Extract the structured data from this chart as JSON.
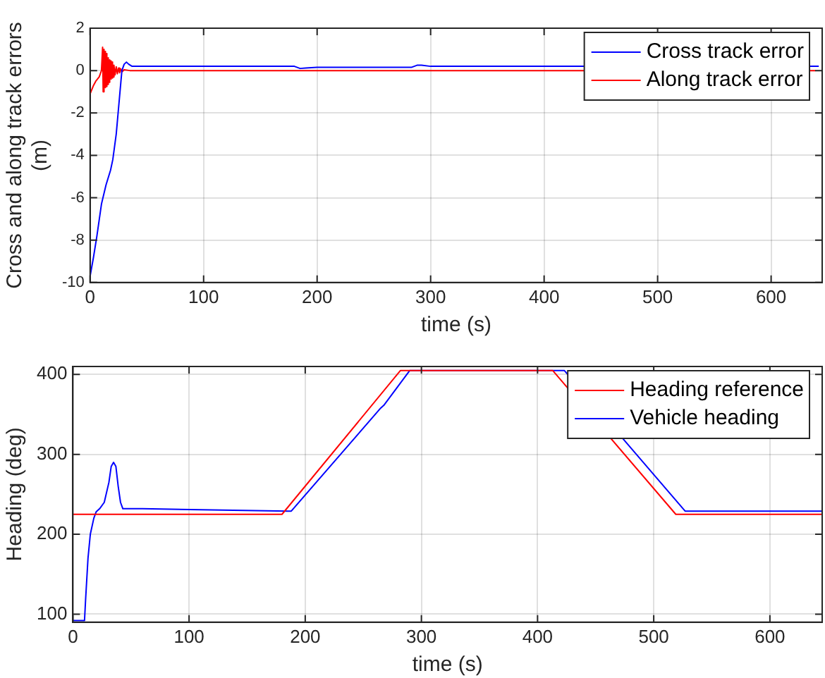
{
  "chart_data": [
    {
      "type": "line",
      "xlabel": "time (s)",
      "ylabel": "Cross and along track errors (m)",
      "xlim": [
        0,
        645
      ],
      "xticks": [
        0,
        100,
        200,
        300,
        400,
        500,
        600
      ],
      "ylim": [
        -10,
        2
      ],
      "yticks": [
        -10,
        -8,
        -6,
        -4,
        -2,
        0,
        2
      ],
      "grid": true,
      "legend": "top right",
      "line_style": "solid",
      "marker": "none",
      "series": [
        {
          "name": "Cross track error",
          "color": "#0000ff",
          "x": [
            0,
            3,
            6,
            10,
            14,
            18,
            20,
            23,
            25,
            27,
            28,
            30,
            32,
            34,
            37,
            40,
            50,
            100,
            150,
            180,
            185,
            190,
            200,
            250,
            283,
            288,
            292,
            300,
            350,
            410,
            642
          ],
          "values": [
            -9.7,
            -8.8,
            -7.8,
            -6.3,
            -5.4,
            -4.7,
            -4.2,
            -3.0,
            -1.8,
            -0.6,
            0,
            0.3,
            0.4,
            0.3,
            0.2,
            0.2,
            0.2,
            0.2,
            0.2,
            0.2,
            0.1,
            0.12,
            0.15,
            0.15,
            0.15,
            0.25,
            0.25,
            0.2,
            0.2,
            0.2,
            0.2
          ]
        },
        {
          "name": "Along track error",
          "color": "#ff0000",
          "x": [
            0,
            3,
            5,
            8,
            10,
            11,
            11.5,
            12,
            12.5,
            13,
            13.5,
            14,
            14.5,
            15,
            15.5,
            16,
            16.5,
            17,
            17.5,
            18,
            18.5,
            19,
            19.5,
            20,
            20.5,
            21,
            22,
            23,
            24,
            25,
            26,
            27,
            28,
            30,
            35,
            40,
            50,
            100,
            200,
            300,
            410,
            639
          ],
          "values": [
            -1.1,
            -0.7,
            -0.5,
            -0.3,
            0,
            1.1,
            -1.0,
            1.0,
            -0.9,
            0.9,
            -0.8,
            0.8,
            -0.75,
            0.7,
            -0.65,
            0.6,
            -0.55,
            0.5,
            -0.45,
            0.45,
            -0.4,
            0.4,
            -0.35,
            0.3,
            -0.3,
            0.25,
            -0.2,
            0.18,
            -0.15,
            0.12,
            -0.1,
            0.08,
            -0.06,
            0.04,
            0,
            0,
            0,
            0,
            0,
            0,
            0,
            0
          ]
        }
      ]
    },
    {
      "type": "line",
      "xlabel": "time (s)",
      "ylabel": "Heading (deg)",
      "xlim": [
        0,
        645
      ],
      "xticks": [
        0,
        100,
        200,
        300,
        400,
        500,
        600
      ],
      "ylim": [
        90,
        410
      ],
      "yticks": [
        100,
        200,
        300,
        400
      ],
      "grid": true,
      "legend": "top right",
      "line_style": "solid",
      "marker": "none",
      "series": [
        {
          "name": "Heading reference",
          "color": "#ff0000",
          "x": [
            0,
            180,
            282,
            413,
            519,
            645
          ],
          "values": [
            225,
            225,
            405,
            405,
            225,
            225
          ]
        },
        {
          "name": "Vehicle heading",
          "color": "#0000ff",
          "x": [
            0,
            10,
            11,
            13,
            15,
            18,
            20,
            23,
            27,
            31,
            33,
            35,
            37,
            39,
            41,
            43,
            60,
            185,
            188,
            265,
            268,
            290,
            423,
            527,
            645
          ],
          "values": [
            92,
            92,
            120,
            170,
            200,
            220,
            228,
            232,
            240,
            265,
            285,
            290,
            285,
            260,
            240,
            232,
            232,
            229,
            229,
            358,
            362,
            405,
            405,
            229,
            229
          ]
        }
      ]
    }
  ]
}
